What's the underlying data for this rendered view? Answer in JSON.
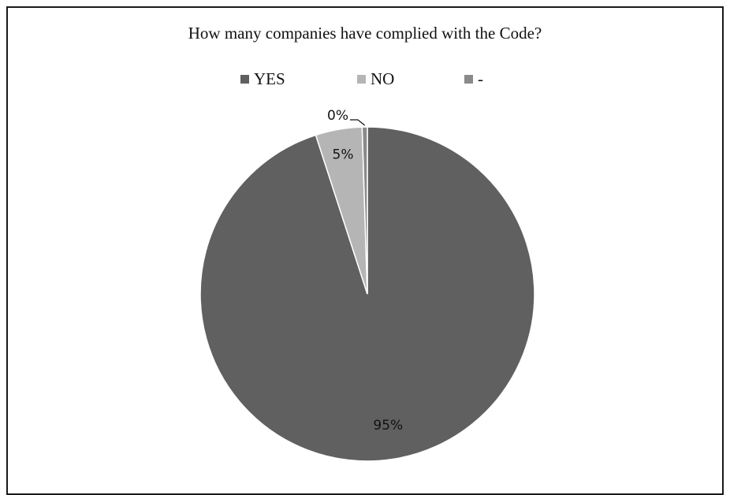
{
  "chart_data": {
    "type": "pie",
    "title": "How many companies have complied with the Code?",
    "legend_position": "top",
    "slices": [
      {
        "label": "YES",
        "value": 95,
        "display": "95%",
        "color": "#606060"
      },
      {
        "label": "NO",
        "value": 4.5,
        "display": "5%",
        "color": "#b5b5b5"
      },
      {
        "label": "-",
        "value": 0.5,
        "display": "0%",
        "color": "#8a8a8a"
      }
    ]
  }
}
